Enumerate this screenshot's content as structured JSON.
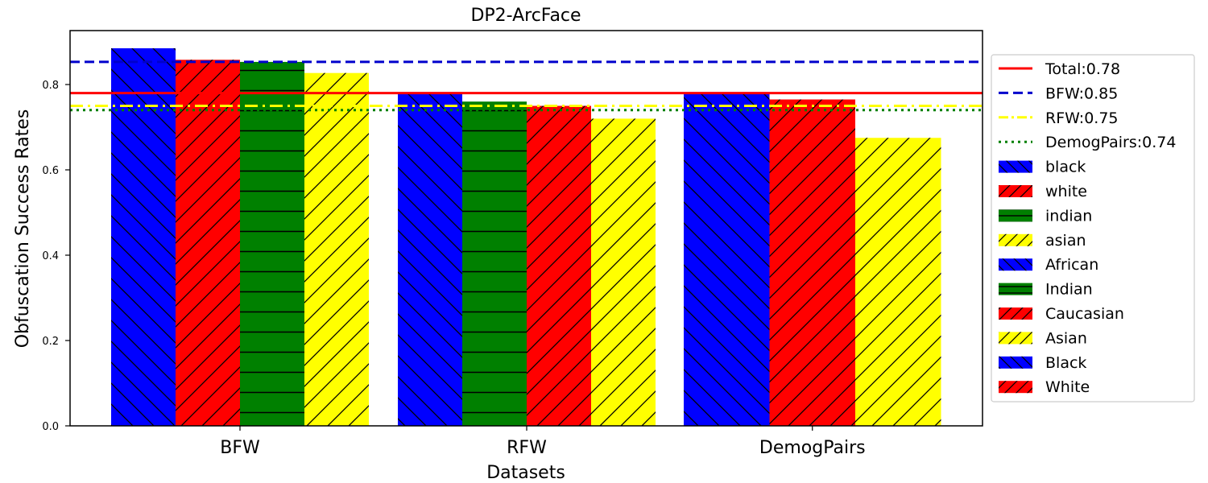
{
  "chart_data": {
    "type": "bar",
    "title": "DP2-ArcFace",
    "xlabel": "Datasets",
    "ylabel": "Obfuscation Success Rates",
    "ylim": [
      0,
      0.9
    ],
    "yticks": [
      "0.0",
      "0.2",
      "0.4",
      "0.6",
      "0.8"
    ],
    "grid": false,
    "legend_position": "right, outside plot",
    "categories": [
      "BFW",
      "RFW",
      "DemogPairs"
    ],
    "groups": [
      {
        "dataset": "BFW",
        "bars": [
          {
            "label": "black",
            "value": 0.885,
            "color": "#0000ff",
            "hatch": "backslash"
          },
          {
            "label": "white",
            "value": 0.858,
            "color": "#ff0000",
            "hatch": "slash"
          },
          {
            "label": "indian",
            "value": 0.853,
            "color": "#008000",
            "hatch": "horizontal"
          },
          {
            "label": "asian",
            "value": 0.827,
            "color": "#ffff00",
            "hatch": "slash"
          }
        ]
      },
      {
        "dataset": "RFW",
        "bars": [
          {
            "label": "African",
            "value": 0.78,
            "color": "#0000ff",
            "hatch": "backslash"
          },
          {
            "label": "Indian",
            "value": 0.76,
            "color": "#008000",
            "hatch": "horizontal"
          },
          {
            "label": "Caucasian",
            "value": 0.75,
            "color": "#ff0000",
            "hatch": "slash"
          },
          {
            "label": "Asian",
            "value": 0.72,
            "color": "#ffff00",
            "hatch": "slash"
          }
        ]
      },
      {
        "dataset": "DemogPairs",
        "bars": [
          {
            "label": "Black",
            "value": 0.78,
            "color": "#0000ff",
            "hatch": "backslash"
          },
          {
            "label": "White",
            "value": 0.765,
            "color": "#ff0000",
            "hatch": "slash"
          },
          {
            "label": "Asian",
            "value": 0.675,
            "color": "#ffff00",
            "hatch": "slash"
          }
        ]
      }
    ],
    "reference_lines": [
      {
        "label": "Total:0.78",
        "value": 0.78,
        "color": "#ff0000",
        "style": "solid"
      },
      {
        "label": "BFW:0.85",
        "value": 0.853,
        "color": "#0000cc",
        "style": "dashed"
      },
      {
        "label": "RFW:0.75",
        "value": 0.75,
        "color": "#ffff00",
        "style": "dashdot"
      },
      {
        "label": "DemogPairs:0.74",
        "value": 0.74,
        "color": "#008000",
        "style": "dotted"
      }
    ],
    "legend_patches": [
      {
        "label": "black",
        "color": "#0000ff",
        "hatch": "backslash"
      },
      {
        "label": "white",
        "color": "#ff0000",
        "hatch": "slash"
      },
      {
        "label": "indian",
        "color": "#008000",
        "hatch": "horizontal"
      },
      {
        "label": "asian",
        "color": "#ffff00",
        "hatch": "slash"
      },
      {
        "label": "African",
        "color": "#0000ff",
        "hatch": "backslash"
      },
      {
        "label": "Indian",
        "color": "#008000",
        "hatch": "horizontal"
      },
      {
        "label": "Caucasian",
        "color": "#ff0000",
        "hatch": "slash"
      },
      {
        "label": "Asian",
        "color": "#ffff00",
        "hatch": "slash"
      },
      {
        "label": "Black",
        "color": "#0000ff",
        "hatch": "backslash"
      },
      {
        "label": "White",
        "color": "#ff0000",
        "hatch": "slash"
      }
    ]
  }
}
